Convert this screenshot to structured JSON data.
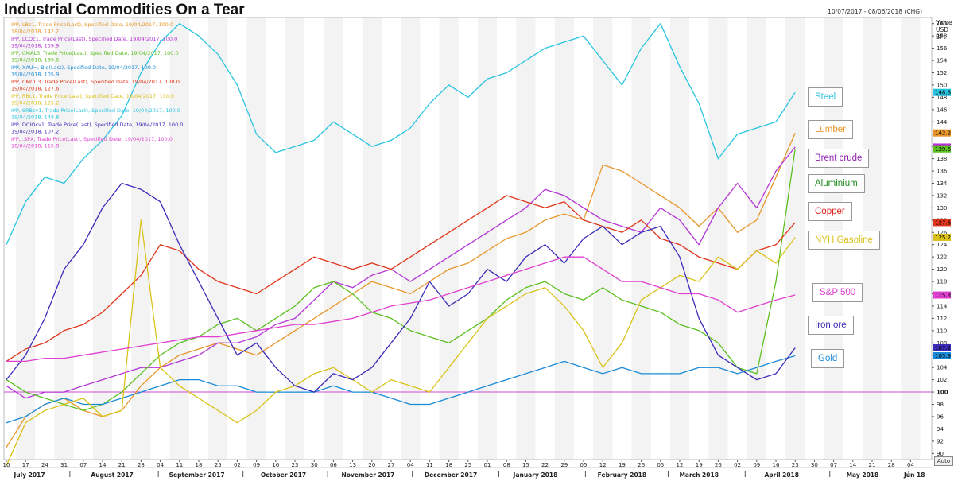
{
  "title": "Industrial Commodities On a Tear",
  "date_range": "10/07/2017 - 08/06/2018 (CHG)",
  "axis_unit": [
    "Value",
    "USD",
    "BFt"
  ],
  "auto_button": "Auto",
  "legend": [
    {
      "line1": "IPP, LBc1, Trade Price(Last), Specified Date, 19/04/2017, 100.0",
      "line2": "18/04/2018, 142.2",
      "color": "#e8962a"
    },
    {
      "line1": "IPP, LCOc1, Trade Price(Last), Specified Date, 19/04/2017, 100.0",
      "line2": "19/04/2018, 139.9",
      "color": "#b535d6"
    },
    {
      "line1": "IPP, CMAL3, Trade Price(Last), Specified Date, 19/04/2017, 100.0",
      "line2": "19/04/2018, 139.6",
      "color": "#5bbf20"
    },
    {
      "line1": "IPP, XAU=, Bid(Last), Specified Date, 19/04/2017, 100.0",
      "line2": "19/04/2018, 105.9",
      "color": "#1a8ad8"
    },
    {
      "line1": "IPP, CMCU3, Trade Price(Last), Specified Date, 19/04/2017, 100.0",
      "line2": "19/04/2018, 127.6",
      "color": "#e0351a"
    },
    {
      "line1": "IPP, RBc1, Trade Price(Last), Specified Date, 19/04/2017, 100.0",
      "line2": "19/04/2018, 125.2",
      "color": "#d9c21a"
    },
    {
      "line1": "IPP, SRBcv1, Trade Price(Last), Specified Date, 19/04/2017, 100.0",
      "line2": "19/04/2018, 148.8",
      "color": "#28c4e0"
    },
    {
      "line1": "IPP, DCIOcv1, Trade Price(Last), Specified Date, 19/04/2017, 100.0",
      "line2": "19/04/2018, 107.2",
      "color": "#3a2cb8"
    },
    {
      "line1": "IPP, .SPX, Trade Price(Last), Specified Date, 19/04/2017, 100.0",
      "line2": "18/04/2018, 115.8",
      "color": "#e040d0"
    }
  ],
  "series_labels": [
    {
      "text": "Steel",
      "color": "#28c4e0"
    },
    {
      "text": "Lumber",
      "color": "#e8962a"
    },
    {
      "text": "Brent crude",
      "color": "#9020b0"
    },
    {
      "text": "Aluminium",
      "color": "#208a20"
    },
    {
      "text": "Copper",
      "color": "#e0201a"
    },
    {
      "text": "NYH Gasoline",
      "color": "#d9c21a"
    },
    {
      "text": "S&P 500",
      "color": "#e040d0"
    },
    {
      "text": "Iron ore",
      "color": "#3a2cb8"
    },
    {
      "text": "Gold",
      "color": "#1a8ad8"
    }
  ],
  "chart_data": {
    "type": "line",
    "ylim": [
      89,
      161
    ],
    "reference_line": 100,
    "grid": false,
    "x_range": [
      "2017-07-10",
      "2018-06-08"
    ],
    "weeks_count": 48,
    "day_ticks": [
      "10",
      "17",
      "24",
      "31",
      "07",
      "14",
      "21",
      "28",
      "04",
      "11",
      "18",
      "25",
      "02",
      "09",
      "16",
      "23",
      "30",
      "06",
      "13",
      "20",
      "27",
      "04",
      "11",
      "18",
      "25",
      "01",
      "08",
      "15",
      "22",
      "29",
      "05",
      "12",
      "19",
      "26",
      "05",
      "12",
      "19",
      "26",
      "02",
      "09",
      "16",
      "23",
      "30",
      "07",
      "14",
      "21",
      "28",
      "04"
    ],
    "month_labels": [
      {
        "label": "July 2017",
        "week": 1.2
      },
      {
        "label": "August 2017",
        "week": 5.5
      },
      {
        "label": "September 2017",
        "week": 9.9
      },
      {
        "label": "October 2017",
        "week": 14.4
      },
      {
        "label": "November 2017",
        "week": 18.8
      },
      {
        "label": "December 2017",
        "week": 23.1
      },
      {
        "label": "January 2018",
        "week": 27.5
      },
      {
        "label": "February 2018",
        "week": 32.0
      },
      {
        "label": "March 2018",
        "week": 36.0
      },
      {
        "label": "April 2018",
        "week": 40.3
      },
      {
        "label": "May 2018",
        "week": 44.5
      },
      {
        "label": "Jun 18",
        "week": 47.2
      }
    ],
    "month_separators": [
      3.3,
      7.9,
      12.3,
      16.7,
      21.1,
      25.6,
      30.1,
      34.4,
      38.4,
      42.8,
      46.9
    ],
    "y_ticks": [
      90,
      92,
      94,
      96,
      98,
      100,
      102,
      104,
      106,
      108,
      110,
      112,
      114,
      116,
      118,
      120,
      122,
      124,
      126,
      128,
      130,
      132,
      134,
      136,
      138,
      140,
      142,
      144,
      146,
      148,
      150,
      152,
      154,
      156,
      158,
      160
    ],
    "value_badges": [
      {
        "value": "148.8",
        "y": 148.8,
        "color": "#28c4e0"
      },
      {
        "value": "142.2",
        "y": 142.2,
        "color": "#e8962a"
      },
      {
        "value": "139.9",
        "y": 139.9,
        "color": "#b535d6"
      },
      {
        "value": "139.6",
        "y": 139.6,
        "color": "#5bbf20"
      },
      {
        "value": "127.6",
        "y": 127.6,
        "color": "#e0351a"
      },
      {
        "value": "125.2",
        "y": 125.2,
        "color": "#d9c21a"
      },
      {
        "value": "115.8",
        "y": 115.8,
        "color": "#e040d0"
      },
      {
        "value": "107.2",
        "y": 107.2,
        "color": "#3a2cb8"
      },
      {
        "value": "105.9",
        "y": 105.9,
        "color": "#1a8ad8"
      }
    ],
    "series": [
      {
        "color": "#28c4e0",
        "weeks": [
          0,
          1,
          2,
          3,
          4,
          5,
          6,
          7,
          8,
          9,
          10,
          11,
          12,
          13,
          14,
          15,
          16,
          17,
          18,
          19,
          20,
          21,
          22,
          23,
          24,
          25,
          26,
          27,
          28,
          29,
          30,
          31,
          32,
          33,
          34,
          35,
          36,
          37,
          38,
          39,
          40,
          41
        ],
        "values": [
          124,
          131,
          135,
          134,
          138,
          141,
          145,
          152,
          157,
          160,
          158,
          155,
          150,
          142,
          139,
          140,
          141,
          144,
          142,
          140,
          141,
          143,
          147,
          150,
          148,
          151,
          152,
          154,
          156,
          157,
          158,
          154,
          150,
          156,
          160,
          153,
          147,
          138,
          142,
          143,
          144,
          148.8
        ]
      },
      {
        "color": "#e8962a",
        "weeks": [
          0,
          1,
          2,
          3,
          4,
          5,
          6,
          7,
          8,
          9,
          10,
          11,
          12,
          13,
          14,
          15,
          16,
          17,
          18,
          19,
          20,
          21,
          22,
          23,
          24,
          25,
          26,
          27,
          28,
          29,
          30,
          31,
          32,
          33,
          34,
          35,
          36,
          37,
          38,
          39,
          40,
          41
        ],
        "values": [
          91,
          96,
          98,
          99,
          97,
          96,
          97,
          101,
          104,
          106,
          107,
          108,
          107,
          106,
          108,
          110,
          112,
          114,
          116,
          118,
          117,
          116,
          118,
          120,
          121,
          123,
          125,
          126,
          128,
          129,
          128,
          137,
          136,
          134,
          132,
          130,
          127,
          130,
          126,
          128,
          135,
          142.2
        ]
      },
      {
        "color": "#b535d6",
        "weeks": [
          0,
          1,
          2,
          3,
          4,
          5,
          6,
          7,
          8,
          9,
          10,
          11,
          12,
          13,
          14,
          15,
          16,
          17,
          18,
          19,
          20,
          21,
          22,
          23,
          24,
          25,
          26,
          27,
          28,
          29,
          30,
          31,
          32,
          33,
          34,
          35,
          36,
          37,
          38,
          39,
          40,
          41
        ],
        "values": [
          101,
          99,
          100,
          100,
          101,
          102,
          103,
          104,
          104,
          105,
          106,
          108,
          108,
          109,
          111,
          112,
          115,
          118,
          117,
          119,
          120,
          118,
          120,
          122,
          124,
          126,
          128,
          130,
          133,
          132,
          130,
          128,
          127,
          126,
          130,
          128,
          124,
          130,
          134,
          130,
          136,
          139.9
        ]
      },
      {
        "color": "#5bbf20",
        "weeks": [
          0,
          1,
          2,
          3,
          4,
          5,
          6,
          7,
          8,
          9,
          10,
          11,
          12,
          13,
          14,
          15,
          16,
          17,
          18,
          19,
          20,
          21,
          22,
          23,
          24,
          25,
          26,
          27,
          28,
          29,
          30,
          31,
          32,
          33,
          34,
          35,
          36,
          37,
          38,
          39,
          40,
          41
        ],
        "values": [
          102,
          100,
          99,
          98,
          97,
          98,
          100,
          103,
          106,
          108,
          109,
          111,
          112,
          110,
          112,
          114,
          117,
          118,
          116,
          113,
          112,
          110,
          109,
          108,
          110,
          112,
          115,
          117,
          118,
          116,
          115,
          117,
          115,
          114,
          113,
          111,
          110,
          108,
          104,
          103,
          118,
          139.6
        ]
      },
      {
        "color": "#1a8ad8",
        "weeks": [
          0,
          1,
          2,
          3,
          4,
          5,
          6,
          7,
          8,
          9,
          10,
          11,
          12,
          13,
          14,
          15,
          16,
          17,
          18,
          19,
          20,
          21,
          22,
          23,
          24,
          25,
          26,
          27,
          28,
          29,
          30,
          31,
          32,
          33,
          34,
          35,
          36,
          37,
          38,
          39,
          40,
          41
        ],
        "values": [
          95,
          96,
          98,
          99,
          98,
          98,
          99,
          100,
          101,
          102,
          102,
          101,
          101,
          100,
          100,
          100,
          100,
          101,
          100,
          100,
          99,
          98,
          98,
          99,
          100,
          101,
          102,
          103,
          104,
          105,
          104,
          103,
          104,
          103,
          103,
          103,
          104,
          104,
          103,
          104,
          105,
          105.9
        ]
      },
      {
        "color": "#e0351a",
        "weeks": [
          0,
          1,
          2,
          3,
          4,
          5,
          6,
          7,
          8,
          9,
          10,
          11,
          12,
          13,
          14,
          15,
          16,
          17,
          18,
          19,
          20,
          21,
          22,
          23,
          24,
          25,
          26,
          27,
          28,
          29,
          30,
          31,
          32,
          33,
          34,
          35,
          36,
          37,
          38,
          39,
          40,
          41
        ],
        "values": [
          105,
          107,
          108,
          110,
          111,
          113,
          116,
          119,
          124,
          123,
          120,
          118,
          117,
          116,
          118,
          120,
          122,
          121,
          120,
          121,
          120,
          122,
          124,
          126,
          128,
          130,
          132,
          131,
          130,
          131,
          128,
          127,
          126,
          128,
          125,
          124,
          122,
          121,
          120,
          123,
          124,
          127.6
        ]
      },
      {
        "color": "#d9c21a",
        "weeks": [
          0,
          1,
          2,
          3,
          4,
          5,
          6,
          7,
          8,
          9,
          10,
          11,
          12,
          13,
          14,
          15,
          16,
          17,
          18,
          19,
          20,
          21,
          22,
          23,
          24,
          25,
          26,
          27,
          28,
          29,
          30,
          31,
          32,
          33,
          34,
          35,
          36,
          37,
          38,
          39,
          40,
          41
        ],
        "values": [
          88,
          95,
          97,
          98,
          99,
          96,
          97,
          128,
          104,
          101,
          99,
          97,
          95,
          97,
          100,
          101,
          103,
          104,
          102,
          100,
          102,
          101,
          100,
          104,
          108,
          112,
          114,
          116,
          117,
          114,
          110,
          104,
          108,
          115,
          117,
          119,
          118,
          122,
          120,
          123,
          121,
          125.2
        ]
      },
      {
        "color": "#3a2cb8",
        "weeks": [
          0,
          1,
          2,
          3,
          4,
          5,
          6,
          7,
          8,
          9,
          10,
          11,
          12,
          13,
          14,
          15,
          16,
          17,
          18,
          19,
          20,
          21,
          22,
          23,
          24,
          25,
          26,
          27,
          28,
          29,
          30,
          31,
          32,
          33,
          34,
          35,
          36,
          37,
          38,
          39,
          40,
          41
        ],
        "values": [
          102,
          106,
          112,
          120,
          124,
          130,
          134,
          133,
          131,
          124,
          118,
          112,
          106,
          108,
          104,
          101,
          100,
          103,
          102,
          104,
          108,
          112,
          118,
          114,
          116,
          120,
          118,
          122,
          124,
          121,
          125,
          127,
          124,
          126,
          127,
          122,
          112,
          106,
          104,
          102,
          103,
          107.2
        ]
      },
      {
        "color": "#e040d0",
        "weeks": [
          0,
          1,
          2,
          3,
          4,
          5,
          6,
          7,
          8,
          9,
          10,
          11,
          12,
          13,
          14,
          15,
          16,
          17,
          18,
          19,
          20,
          21,
          22,
          23,
          24,
          25,
          26,
          27,
          28,
          29,
          30,
          31,
          32,
          33,
          34,
          35,
          36,
          37,
          38,
          39,
          40,
          41
        ],
        "values": [
          105,
          105,
          105.5,
          105.5,
          106,
          106.5,
          107,
          107.5,
          108,
          108.5,
          109,
          109,
          109.5,
          110,
          110.5,
          111,
          111,
          111.5,
          112,
          113,
          114,
          114.5,
          115,
          116,
          117,
          118,
          119,
          120,
          121,
          122,
          122,
          120,
          118,
          118,
          117,
          116,
          116,
          115,
          113,
          114,
          115,
          115.8
        ]
      }
    ]
  }
}
